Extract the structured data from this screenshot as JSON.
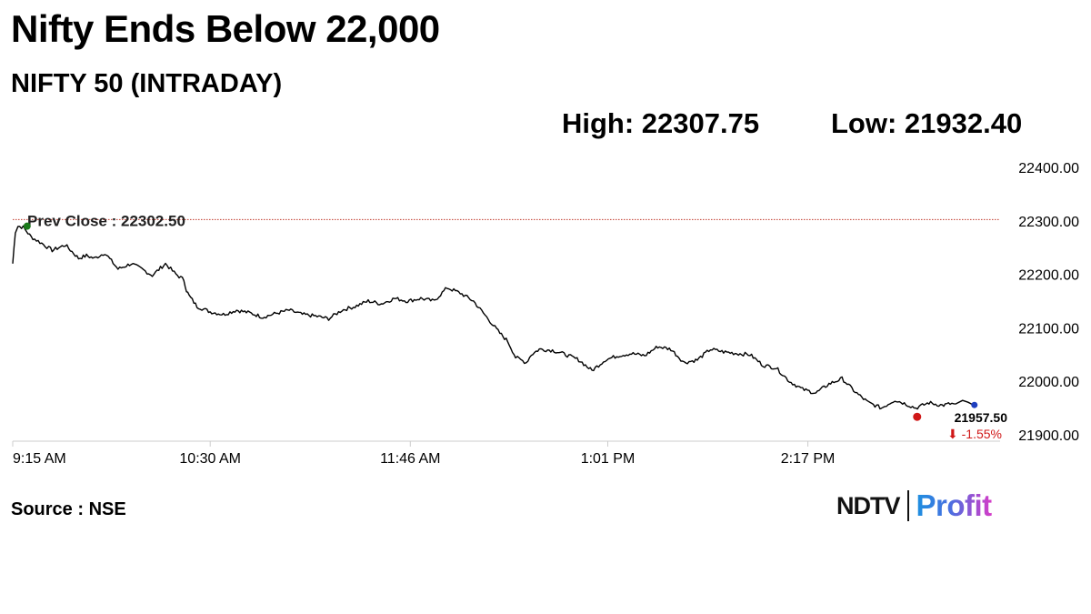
{
  "header": {
    "title": "Nifty Ends Below 22,000",
    "subtitle": "NIFTY 50 (INTRADAY)"
  },
  "stats": {
    "high_label": "High: 22307.75",
    "low_label": "Low: 21932.40"
  },
  "footer": {
    "source": "Source : NSE",
    "brand_left": "NDTV",
    "brand_right": "Profit"
  },
  "colors": {
    "line": "#000000",
    "prev_close_line": "#c0392b",
    "start_marker": "#1a7a1a",
    "end_marker": "#d01818",
    "change_text": "#d01818",
    "marker_blue": "#1f3fbf",
    "axis": "#cccccc"
  },
  "chart_data": {
    "type": "line",
    "title": "NIFTY 50 (INTRADAY)",
    "x_tick_labels": [
      "9:15 AM",
      "10:30 AM",
      "11:46 AM",
      "1:01 PM",
      "2:17 PM"
    ],
    "x_tick_minutes": [
      555,
      630,
      706,
      781,
      857
    ],
    "xlim_minutes": [
      555,
      930
    ],
    "ylim": [
      21900,
      22400
    ],
    "y_ticks": [
      22400,
      22300,
      22200,
      22100,
      22000,
      21900
    ],
    "y_tick_labels": [
      "22400.00",
      "22300.00",
      "22200.00",
      "22100.00",
      "22000.00",
      "21900.00"
    ],
    "prev_close": 22302.5,
    "prev_close_label": "Prev Close : 22302.50",
    "last_value": 21957.5,
    "last_value_label": "21957.50",
    "change_label": "⬇ -1.55%",
    "grid": false,
    "series": [
      {
        "x": [
          555,
          556,
          557,
          559,
          562,
          566,
          570,
          575,
          580,
          583,
          586,
          590,
          595,
          600,
          604,
          608,
          613,
          617,
          620,
          621,
          622,
          625,
          630,
          635,
          640,
          645,
          650,
          655,
          660,
          665,
          670,
          675,
          680,
          685,
          690,
          695,
          700,
          705,
          710,
          715,
          720,
          725,
          730,
          735,
          740,
          743,
          746,
          748,
          750,
          752,
          755,
          760,
          765,
          770,
          775,
          780,
          785,
          790,
          795,
          800,
          805,
          810,
          815,
          820,
          825,
          830,
          835,
          840,
          845,
          850,
          855,
          860,
          865,
          870,
          875,
          880,
          885,
          890,
          893,
          898,
          903,
          908,
          911,
          913
        ],
        "values": [
          22220,
          22280,
          22290,
          22288,
          22270,
          22258,
          22245,
          22255,
          22230,
          22235,
          22230,
          22240,
          22210,
          22220,
          22210,
          22198,
          22220,
          22200,
          22190,
          22170,
          22160,
          22140,
          22130,
          22125,
          22133,
          22128,
          22120,
          22127,
          22133,
          22125,
          22122,
          22117,
          22133,
          22140,
          22150,
          22145,
          22155,
          22150,
          22155,
          22150,
          22175,
          22165,
          22150,
          22120,
          22090,
          22075,
          22045,
          22040,
          22035,
          22050,
          22060,
          22058,
          22050,
          22040,
          22020,
          22040,
          22048,
          22052,
          22048,
          22065,
          22060,
          22035,
          22040,
          22060,
          22055,
          22052,
          22050,
          22030,
          22025,
          22000,
          21985,
          21978,
          21995,
          22005,
          21980,
          21960,
          21950,
          21965,
          21960,
          21950,
          21960,
          21955,
          21958,
          21957.5
        ]
      }
    ]
  }
}
